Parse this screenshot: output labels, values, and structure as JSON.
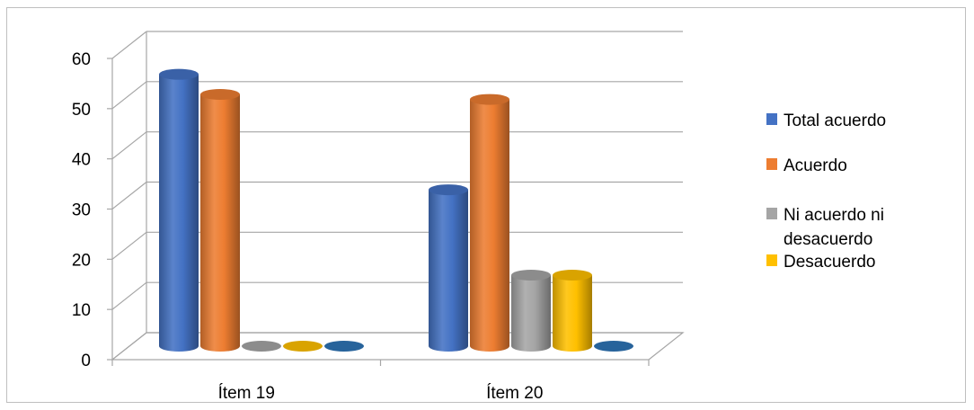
{
  "chart_data": {
    "type": "bar",
    "categories": [
      "Ítem 19",
      "Ítem 20"
    ],
    "series": [
      {
        "name": "Total acuerdo",
        "values": [
          52,
          29
        ],
        "color": "#4472C4"
      },
      {
        "name": "Acuerdo",
        "values": [
          48,
          47
        ],
        "color": "#ED7D31"
      },
      {
        "name": "Ni acuerdo ni desacuerdo",
        "values": [
          0,
          12
        ],
        "color": "#A5A5A5"
      },
      {
        "name": "Desacuerdo",
        "values": [
          0,
          12
        ],
        "color": "#FFC000"
      },
      {
        "name": "",
        "values": [
          0,
          0
        ],
        "color": "#2E75B6"
      }
    ],
    "legend_entries": [
      {
        "label": "Total acuerdo",
        "color": "#4472C4"
      },
      {
        "label": "Acuerdo",
        "color": "#ED7D31"
      },
      {
        "label": "Ni acuerdo ni desacuerdo",
        "color": "#A5A5A5"
      },
      {
        "label": "Desacuerdo",
        "color": "#FFC000"
      }
    ],
    "ylim": [
      0,
      60
    ],
    "yticks": [
      0,
      10,
      20,
      30,
      40,
      50,
      60
    ],
    "grid": true,
    "legend_position": "right",
    "style": "3d-cylinder"
  }
}
